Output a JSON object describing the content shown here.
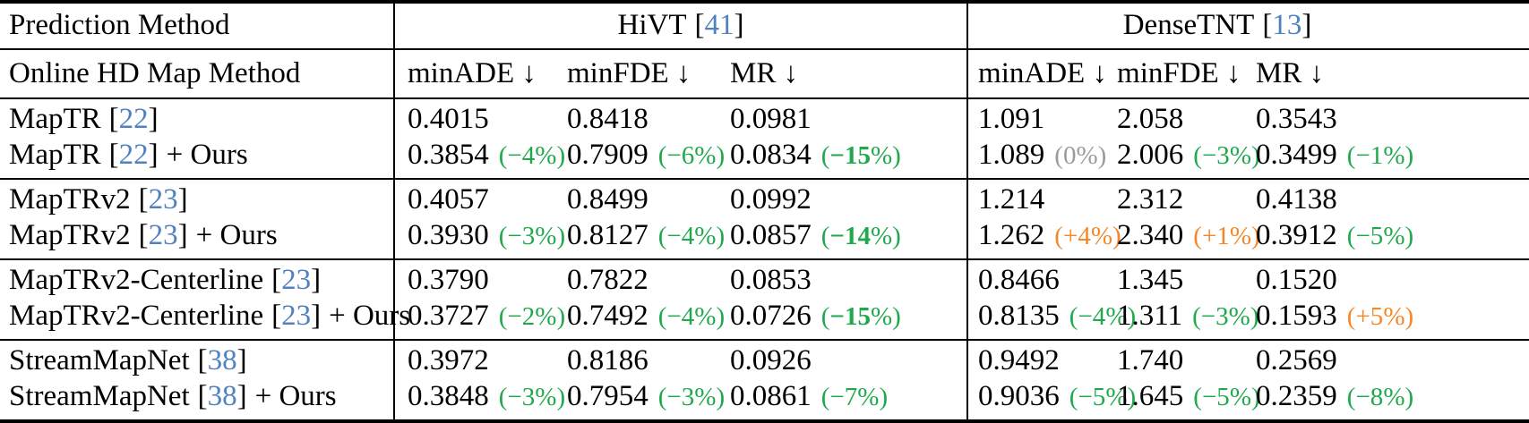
{
  "colors": {
    "green": "#1fa94c",
    "orange": "#f68626",
    "gray": "#9b9b9b",
    "cite": "#5082be",
    "ink": "#000000",
    "bg": "#ffffff"
  },
  "fmt": {
    "open": "(",
    "close": "%)",
    "bracket_open": "[",
    "bracket_close": "]"
  },
  "header": {
    "row1_label": "Prediction Method",
    "groups": [
      {
        "name": "HiVT",
        "cite": "41"
      },
      {
        "name": "DenseTNT",
        "cite": "13"
      }
    ],
    "row2_label": "Online HD Map Method",
    "metrics": [
      "minADE ↓",
      "minFDE ↓",
      "MR ↓",
      "minADE ↓",
      "minFDE ↓",
      "MR ↓"
    ]
  },
  "groups": [
    {
      "baseline": {
        "name": "MapTR",
        "cite": "22",
        "suffix": "",
        "values": [
          "0.4015",
          "0.8418",
          "0.0981",
          "1.091",
          "2.058",
          "0.3543"
        ]
      },
      "ours": {
        "name": "MapTR",
        "cite": "22",
        "suffix": "+ Ours",
        "cells": [
          {
            "v": "0.3854",
            "d": "−4",
            "s": "green"
          },
          {
            "v": "0.7909",
            "d": "−6",
            "s": "green"
          },
          {
            "v": "0.0834",
            "d": "−15",
            "s": "green bold"
          },
          {
            "v": "1.089",
            "d": "0",
            "s": "gray"
          },
          {
            "v": "2.006",
            "d": "−3",
            "s": "green"
          },
          {
            "v": "0.3499",
            "d": "−1",
            "s": "green"
          }
        ]
      }
    },
    {
      "baseline": {
        "name": "MapTRv2",
        "cite": "23",
        "suffix": "",
        "values": [
          "0.4057",
          "0.8499",
          "0.0992",
          "1.214",
          "2.312",
          "0.4138"
        ]
      },
      "ours": {
        "name": "MapTRv2",
        "cite": "23",
        "suffix": "+ Ours",
        "cells": [
          {
            "v": "0.3930",
            "d": "−3",
            "s": "green"
          },
          {
            "v": "0.8127",
            "d": "−4",
            "s": "green"
          },
          {
            "v": "0.0857",
            "d": "−14",
            "s": "green bold"
          },
          {
            "v": "1.262",
            "d": "+4",
            "s": "orange"
          },
          {
            "v": "2.340",
            "d": "+1",
            "s": "orange"
          },
          {
            "v": "0.3912",
            "d": "−5",
            "s": "green"
          }
        ]
      }
    },
    {
      "baseline": {
        "name": "MapTRv2-Centerline",
        "cite": "23",
        "suffix": "",
        "values": [
          "0.3790",
          "0.7822",
          "0.0853",
          "0.8466",
          "1.345",
          "0.1520"
        ]
      },
      "ours": {
        "name": "MapTRv2-Centerline",
        "cite": "23",
        "suffix": "+ Ours",
        "cells": [
          {
            "v": "0.3727",
            "d": "−2",
            "s": "green"
          },
          {
            "v": "0.7492",
            "d": "−4",
            "s": "green"
          },
          {
            "v": "0.0726",
            "d": "−15",
            "s": "green bold"
          },
          {
            "v": "0.8135",
            "d": "−4",
            "s": "green"
          },
          {
            "v": "1.311",
            "d": "−3",
            "s": "green"
          },
          {
            "v": "0.1593",
            "d": "+5",
            "s": "orange"
          }
        ]
      }
    },
    {
      "baseline": {
        "name": "StreamMapNet",
        "cite": "38",
        "suffix": "",
        "values": [
          "0.3972",
          "0.8186",
          "0.0926",
          "0.9492",
          "1.740",
          "0.2569"
        ]
      },
      "ours": {
        "name": "StreamMapNet",
        "cite": "38",
        "suffix": "+ Ours",
        "cells": [
          {
            "v": "0.3848",
            "d": "−3",
            "s": "green"
          },
          {
            "v": "0.7954",
            "d": "−3",
            "s": "green"
          },
          {
            "v": "0.0861",
            "d": "−7",
            "s": "green"
          },
          {
            "v": "0.9036",
            "d": "−5",
            "s": "green"
          },
          {
            "v": "1.645",
            "d": "−5",
            "s": "green"
          },
          {
            "v": "0.2359",
            "d": "−8",
            "s": "green"
          }
        ]
      }
    }
  ]
}
